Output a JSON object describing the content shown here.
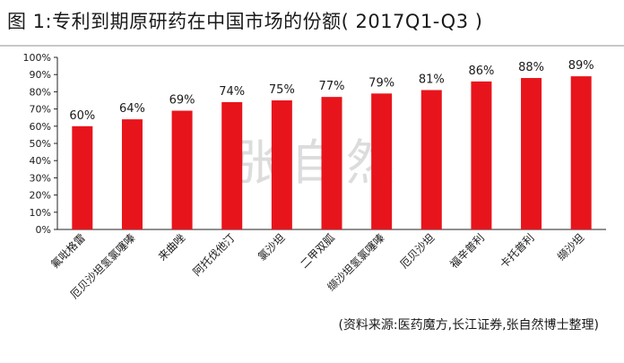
{
  "title": "图 1:专利到期原研药在中国市场的份额( 2017Q1-Q3 )",
  "watermark": "张自然",
  "source": "(资料来源:医药魔方,长江证券,张自然博士整理)",
  "colors": {
    "bar": "#e8141c",
    "axis": "#222222",
    "watermark": "#d9d9d9"
  },
  "chart_data": {
    "type": "bar",
    "categories": [
      "氟吡格雷",
      "厄贝沙坦氢氯噻嗪",
      "来曲唑",
      "阿托伐他汀",
      "氯沙坦",
      "二甲双胍",
      "缬沙坦氢氯噻嗪",
      "厄贝沙坦",
      "福辛普利",
      "卡托普利",
      "缬沙坦"
    ],
    "values": [
      60,
      64,
      69,
      74,
      75,
      77,
      79,
      81,
      86,
      88,
      89
    ],
    "data_labels": [
      "60%",
      "64%",
      "69%",
      "74%",
      "75%",
      "77%",
      "79%",
      "81%",
      "86%",
      "88%",
      "89%"
    ],
    "yticks": [
      "0%",
      "10%",
      "20%",
      "30%",
      "40%",
      "50%",
      "60%",
      "70%",
      "80%",
      "90%",
      "100%"
    ],
    "ylim": [
      0,
      100
    ],
    "title": "图 1:专利到期原研药在中国市场的份额( 2017Q1-Q3 )",
    "xlabel": "",
    "ylabel": "",
    "grid": false,
    "legend": "none"
  }
}
